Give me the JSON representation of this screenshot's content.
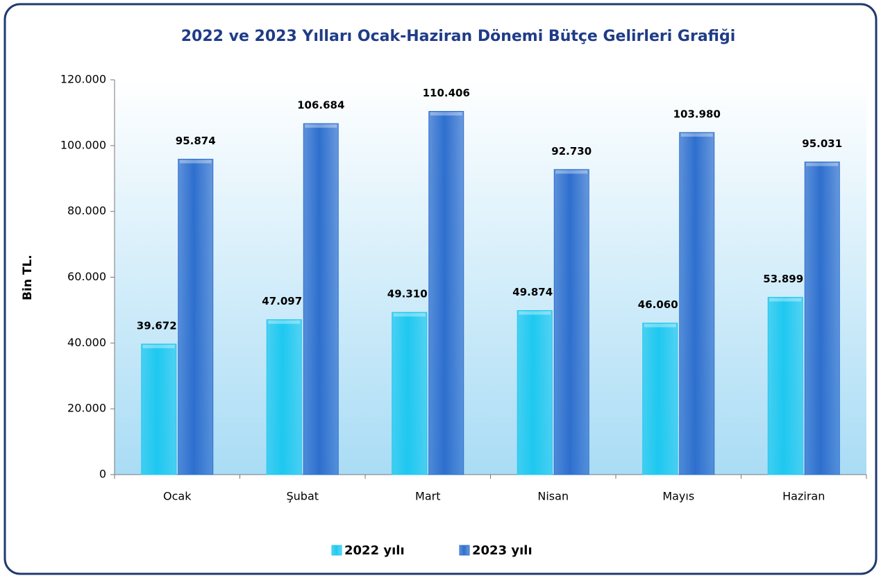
{
  "chart_data": {
    "type": "bar",
    "title": "2022 ve 2023 Yılları Ocak-Haziran Dönemi Bütçe Gelirleri Grafiği",
    "y_label": "Bin TL.",
    "categories": [
      "Ocak",
      "Şubat",
      "Mart",
      "Nisan",
      "Mayıs",
      "Haziran"
    ],
    "series": [
      {
        "name": "2022 yılı",
        "color": "#1ec8f0",
        "values": [
          39672,
          47097,
          49310,
          49874,
          46060,
          53899
        ],
        "value_labels": [
          "39.672",
          "47.097",
          "49.310",
          "49.874",
          "46.060",
          "53.899"
        ]
      },
      {
        "name": "2023 yılı",
        "color": "#2e6fce",
        "values": [
          95874,
          106684,
          110406,
          92730,
          103980,
          95031
        ],
        "value_labels": [
          "95.874",
          "106.684",
          "110.406",
          "92.730",
          "103.980",
          "95.031"
        ]
      }
    ],
    "ylim": [
      0,
      120000
    ],
    "yticks": [
      0,
      {
        "value": 20000,
        "label": "20.000"
      },
      {
        "value": 40000,
        "label": "40.000"
      },
      {
        "value": 60000,
        "label": "60.000"
      },
      {
        "value": 80000,
        "label": "80.000"
      },
      {
        "value": 100000,
        "label": "100.000"
      },
      {
        "value": 120000,
        "label": "120.000"
      }
    ],
    "grid": false,
    "legend": "bottom"
  }
}
